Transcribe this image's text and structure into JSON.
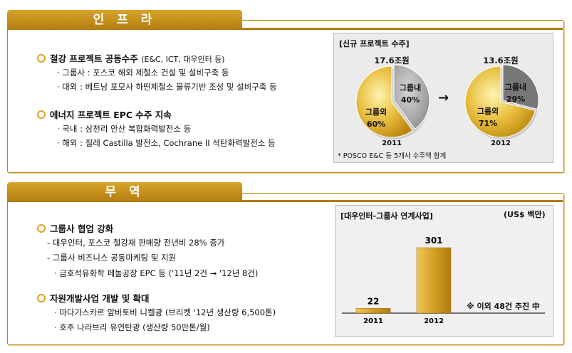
{
  "infra": {
    "title": "인 프 라",
    "bullet1": {
      "title": "철강 프로젝트 공동수주",
      "subtitle": "(E&C, ICT, 대우인터 등)"
    },
    "lines1": [
      "· 그룹사 : 포스코 해외 제철소 건설 및 설비구축 등",
      "· 대외 : 베트남 포모사 하띤제철소 물류기반 조성 및 설비구축 등"
    ],
    "bullet2": {
      "title": "에너지 프로젝트 EPC 수주 지속"
    },
    "lines2": [
      "· 국내 : 삼천리 안산 복합화력발전소 등",
      "· 해외 : 칠레 Castilla 발전소, Cochrane II 석탄화력발전소 등"
    ],
    "chart": {
      "title": "[신규 프로젝트 수주]",
      "note": "* POSCO E&C 등 5개사 수주액 합계",
      "arrow": "→",
      "pies": [
        {
          "total": "17.6조원",
          "year": "2011",
          "inner_label": "그룹내",
          "inner_pct": "40%",
          "outer_label": "그룹외",
          "outer_pct": "60%"
        },
        {
          "total": "13.6조원",
          "year": "2012",
          "inner_label": "그룹내",
          "inner_pct": "29%",
          "outer_label": "그룹외",
          "outer_pct": "71%"
        }
      ]
    }
  },
  "trade": {
    "title": "무 역",
    "bullet1": {
      "title": "그룹사 협업 강화"
    },
    "lines1": [
      "- 대우인터, 포스코 철강재 판매량 전년비 28% 증가",
      "- 그룹사 비즈니스 공동마케팅 및 지원",
      "· 금호석유화학 페놀공장 EPC 등 ('11년 2건 → '12년 8건)"
    ],
    "bullet2": {
      "title": "자원개발사업 개발 및 확대"
    },
    "lines2": [
      "· 마다가스카르 암바토비 니켈광 (브리켓 '12년 생산량 6,500톤)",
      "· 호주 나라브리 유연탄광 (생산량 50만톤/월)"
    ],
    "chart": {
      "title": "[대우인터-그룹사 연계사업]",
      "unit": "(US$ 백만)",
      "annotation": "※ 이외 48건 추진 中"
    }
  },
  "colors": {
    "gold": "#c8961c",
    "gold_light": "#f2d060",
    "gold_dark": "#a07010",
    "gray": "#a8a8a8",
    "gray_dark": "#6e6e6e"
  },
  "chart_data": [
    {
      "type": "pie",
      "title": "[신규 프로젝트 수주]",
      "pies": [
        {
          "label": "2011",
          "total": "17.6조원",
          "slices": [
            {
              "name": "그룹내",
              "value": 40
            },
            {
              "name": "그룹외",
              "value": 60
            }
          ]
        },
        {
          "label": "2012",
          "total": "13.6조원",
          "slices": [
            {
              "name": "그룹내",
              "value": 29
            },
            {
              "name": "그룹외",
              "value": 71
            }
          ]
        }
      ]
    },
    {
      "type": "bar",
      "title": "[대우인터-그룹사 연계사업]",
      "ylabel": "(US$ 백만)",
      "categories": [
        "2011",
        "2012"
      ],
      "values": [
        22,
        301
      ]
    }
  ]
}
